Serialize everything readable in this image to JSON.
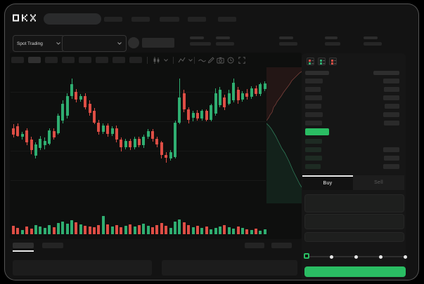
{
  "colors": {
    "accent_green": "#2abd63",
    "candle_up": "#2fae71",
    "candle_down": "#de4e45",
    "depth_ask_line": "#7a403a",
    "depth_bid_line": "#2f7a58",
    "depth_ask_fill": "rgba(130,45,40,0.16)",
    "depth_bid_fill": "rgba(35,105,70,0.18)"
  },
  "topnav": {
    "logo": "OKX",
    "search_placeholder": "",
    "nav_placeholders": [
      [
        148,
        26
      ],
      [
        187,
        26
      ],
      [
        227,
        28
      ],
      [
        267,
        26
      ],
      [
        310,
        26
      ]
    ]
  },
  "subheader": {
    "market_type_selector": "Spot Trading",
    "stat_placeholders": [
      [
        270,
        20,
        30
      ],
      [
        307,
        20,
        26
      ],
      [
        397,
        20,
        26
      ],
      [
        462,
        18,
        22
      ],
      [
        517,
        20,
        26
      ]
    ]
  },
  "chart_toolbar": {
    "timeframe_slots": 8,
    "active_timeframe_index": 1,
    "tool_icons": [
      "interval-candle",
      "chevron-down",
      "indicator-fx",
      "chevron-down",
      "wave-line",
      "pencil-draw",
      "camera-snapshot",
      "undo-clock",
      "fullscreen-expand"
    ]
  },
  "orderbook": {
    "display_modes": [
      "combined-book",
      "bids-only-book",
      "asks-only-book"
    ],
    "header_bars": {
      "left_w": 34,
      "right_w": 37
    },
    "ask_rows": [
      [
        25,
        23
      ],
      [
        22,
        22
      ],
      [
        24,
        23
      ],
      [
        23,
        21
      ],
      [
        25,
        23
      ],
      [
        24,
        22
      ]
    ],
    "last_price_bar": {
      "width": 34,
      "color": "#2abd63"
    },
    "bid_rows": [
      [
        24,
        0
      ],
      [
        23,
        23
      ],
      [
        24,
        22
      ],
      [
        22,
        23
      ]
    ]
  },
  "trade_panel": {
    "tabs": [
      {
        "label": "Buy",
        "active": true
      },
      {
        "label": "Sell",
        "active": false
      }
    ],
    "input_count": 3,
    "slider": {
      "stops": 5,
      "position_index": 0
    }
  },
  "bottom_bar": {
    "left_tabs": [
      [
        18,
        30
      ],
      [
        60,
        30
      ]
    ],
    "active_tab_index": 0,
    "right_placeholders": [
      [
        348,
        28
      ],
      [
        386,
        29
      ]
    ],
    "panels": [
      [
        18,
        198
      ],
      [
        230,
        193
      ]
    ]
  },
  "chart_data": {
    "type": "candlestick",
    "title": "",
    "xlabel": "",
    "ylabel": "",
    "ylim": [
      0,
      100
    ],
    "grid": true,
    "candles_ohlc": [
      [
        42,
        46,
        32,
        35
      ],
      [
        44,
        47,
        33,
        34
      ],
      [
        33,
        38,
        30,
        36
      ],
      [
        40,
        42,
        24,
        27
      ],
      [
        30,
        33,
        15,
        19
      ],
      [
        13,
        27,
        10,
        25
      ],
      [
        21,
        34,
        19,
        31
      ],
      [
        24,
        32,
        20,
        29
      ],
      [
        26,
        42,
        24,
        40
      ],
      [
        39,
        42,
        30,
        32
      ],
      [
        37,
        57,
        35,
        55
      ],
      [
        50,
        71,
        47,
        68
      ],
      [
        55,
        79,
        52,
        76
      ],
      [
        76,
        94,
        73,
        88
      ],
      [
        80,
        83,
        69,
        72
      ],
      [
        72,
        78,
        70,
        76
      ],
      [
        76,
        79,
        62,
        64
      ],
      [
        68,
        71,
        55,
        58
      ],
      [
        60,
        63,
        46,
        48
      ],
      [
        48,
        51,
        35,
        38
      ],
      [
        38,
        47,
        36,
        45
      ],
      [
        45,
        47,
        33,
        36
      ],
      [
        36,
        44,
        34,
        42
      ],
      [
        42,
        45,
        27,
        30
      ],
      [
        30,
        32,
        18,
        22
      ],
      [
        22,
        31,
        20,
        29
      ],
      [
        29,
        31,
        19,
        22
      ],
      [
        22,
        33,
        20,
        31
      ],
      [
        31,
        33,
        22,
        24
      ],
      [
        24,
        35,
        21,
        33
      ],
      [
        33,
        41,
        31,
        39
      ],
      [
        39,
        41,
        28,
        31
      ],
      [
        31,
        33,
        22,
        25
      ],
      [
        27,
        29,
        10,
        14
      ],
      [
        14,
        17,
        6,
        11
      ],
      [
        10,
        19,
        8,
        17
      ],
      [
        12,
        50,
        10,
        48
      ],
      [
        48,
        94,
        46,
        74
      ],
      [
        79,
        82,
        59,
        62
      ],
      [
        62,
        64,
        47,
        51
      ],
      [
        53,
        60,
        49,
        58
      ],
      [
        58,
        61,
        50,
        52
      ],
      [
        52,
        62,
        50,
        60
      ],
      [
        60,
        62,
        49,
        51
      ],
      [
        51,
        68,
        49,
        66
      ],
      [
        57,
        84,
        55,
        79
      ],
      [
        66,
        85,
        64,
        82
      ],
      [
        74,
        77,
        61,
        64
      ],
      [
        68,
        82,
        66,
        79
      ],
      [
        71,
        94,
        69,
        90
      ],
      [
        82,
        85,
        68,
        71
      ],
      [
        72,
        81,
        70,
        79
      ],
      [
        79,
        83,
        72,
        75
      ],
      [
        75,
        86,
        73,
        84
      ],
      [
        84,
        87,
        76,
        78
      ],
      [
        78,
        90,
        76,
        88
      ],
      [
        83,
        91,
        81,
        89
      ]
    ],
    "volume": [
      12,
      9,
      6,
      11,
      8,
      13,
      11,
      9,
      13,
      10,
      16,
      18,
      15,
      20,
      17,
      14,
      12,
      11,
      10,
      13,
      26,
      14,
      11,
      13,
      10,
      12,
      14,
      11,
      13,
      15,
      12,
      10,
      13,
      16,
      12,
      9,
      18,
      21,
      17,
      13,
      10,
      12,
      9,
      11,
      7,
      9,
      11,
      13,
      10,
      8,
      11,
      9,
      7,
      6,
      8,
      5,
      7
    ],
    "depth": {
      "asks_line": [
        [
          0,
          76
        ],
        [
          3,
          72
        ],
        [
          5,
          68
        ],
        [
          8,
          64
        ],
        [
          10,
          57
        ],
        [
          13,
          53
        ],
        [
          15,
          49
        ],
        [
          18,
          45
        ],
        [
          21,
          41
        ],
        [
          24,
          36
        ],
        [
          27,
          32
        ],
        [
          30,
          28
        ],
        [
          33,
          24
        ],
        [
          36,
          19
        ],
        [
          40,
          15
        ],
        [
          44,
          11
        ],
        [
          47,
          8
        ],
        [
          50,
          6
        ]
      ],
      "bids_line": [
        [
          0,
          80
        ],
        [
          4,
          84
        ],
        [
          7,
          88
        ],
        [
          10,
          93
        ],
        [
          13,
          98
        ],
        [
          16,
          104
        ],
        [
          19,
          110
        ],
        [
          22,
          116
        ],
        [
          26,
          122
        ],
        [
          29,
          128
        ],
        [
          32,
          134
        ],
        [
          35,
          141
        ],
        [
          38,
          148
        ],
        [
          41,
          154
        ],
        [
          44,
          160
        ],
        [
          47,
          166
        ],
        [
          50,
          171
        ]
      ]
    }
  }
}
